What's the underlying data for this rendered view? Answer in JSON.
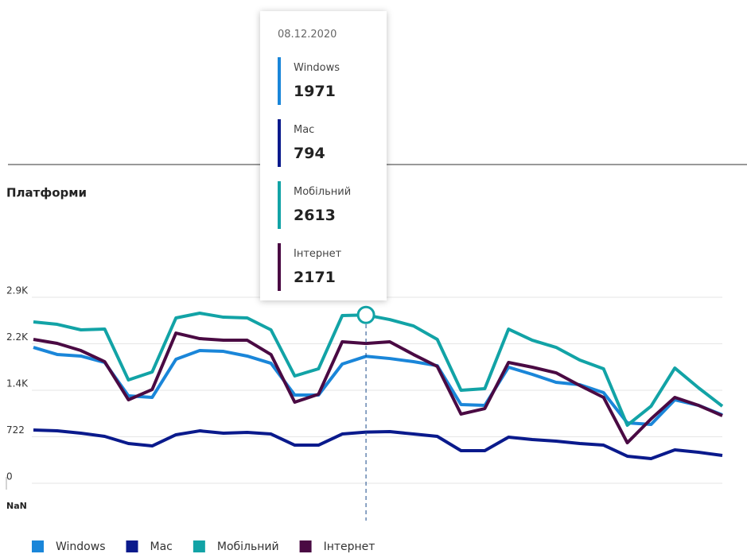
{
  "chart_data": {
    "type": "line",
    "title": "Платформи",
    "categories": [
      null,
      null,
      null,
      null,
      null,
      null,
      null,
      null,
      null,
      null,
      null,
      null,
      null,
      null,
      "08.12.2020",
      null,
      null,
      null,
      null,
      null,
      null,
      null,
      null,
      null,
      null,
      null,
      null,
      null,
      null,
      null
    ],
    "x_tick_labels": [
      "NaN"
    ],
    "ylim": [
      0,
      2888
    ],
    "yticks": [
      0,
      722,
      {
        "value": 1444,
        "label": "1.4K"
      },
      {
        "value": 2166,
        "label": "2.2K"
      },
      {
        "value": 2888,
        "label": "2.9K"
      }
    ],
    "grid": true,
    "series": [
      {
        "name": "Windows",
        "color": "#1a86d9",
        "values": [
          2110,
          2000,
          1975,
          1876,
          1357,
          1333,
          1925,
          2061,
          2048,
          1975,
          1863,
          1370,
          1370,
          1851,
          1971,
          1937,
          1888,
          1826,
          1222,
          1209,
          1802,
          1691,
          1567,
          1530,
          1407,
          938,
          913,
          1296,
          1209,
          1061
        ]
      },
      {
        "name": "Mac",
        "color": "#0a1a8c",
        "values": [
          827,
          814,
          777,
          728,
          617,
          580,
          753,
          814,
          777,
          790,
          765,
          592,
          592,
          765,
          794,
          802,
          765,
          728,
          506,
          506,
          716,
          679,
          654,
          617,
          592,
          420,
          383,
          518,
          481,
          432
        ]
      },
      {
        "name": "Мобільний",
        "color": "#12a3a6",
        "values": [
          2505,
          2468,
          2382,
          2394,
          1604,
          1728,
          2567,
          2641,
          2579,
          2567,
          2382,
          1666,
          1777,
          2604,
          2613,
          2542,
          2443,
          2234,
          1444,
          1469,
          2394,
          2221,
          2110,
          1913,
          1777,
          901,
          1197,
          1789,
          1481,
          1197
        ]
      },
      {
        "name": "Інтернет",
        "color": "#4a0a43",
        "values": [
          2234,
          2172,
          2061,
          1888,
          1296,
          1456,
          2332,
          2246,
          2221,
          2221,
          1999,
          1259,
          1382,
          2197,
          2171,
          2197,
          1999,
          1814,
          1074,
          1160,
          1876,
          1802,
          1715,
          1518,
          1333,
          629,
          1000,
          1333,
          1209,
          1049
        ]
      }
    ]
  }
}
